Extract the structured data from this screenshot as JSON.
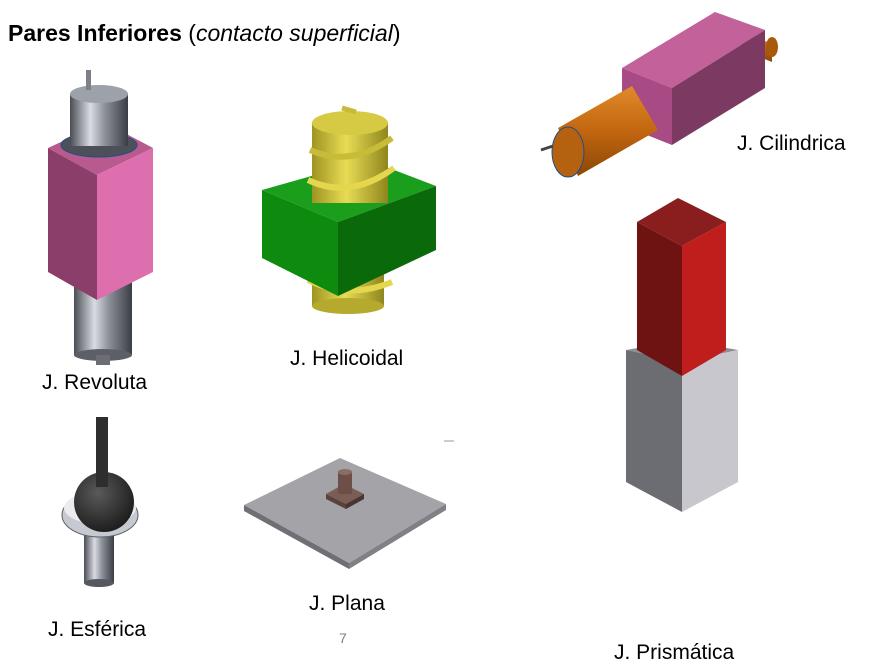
{
  "slide": {
    "title_bold": "Pares Inferiores",
    "title_open": " (",
    "title_italic": "contacto superficial",
    "title_close": ")",
    "page_number": "7"
  },
  "joints": {
    "revoluta": "J. Revoluta",
    "helicoidal": "J. Helicoidal",
    "cilindrica": "J. Cilindrica",
    "esferica": "J. Esférica",
    "plana": "J. Plana",
    "prismatica": "J. Prismática"
  },
  "colors": {
    "pink": "#d96aa6",
    "green": "#17a317",
    "yellow": "#d8c93a",
    "orange": "#c76b10",
    "red": "#b51a1a",
    "gray": "#b7b7bc"
  }
}
